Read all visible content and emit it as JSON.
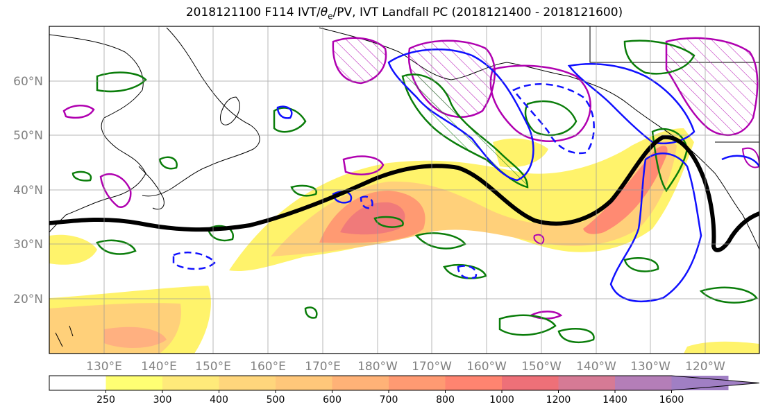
{
  "title": {
    "prefix": "2018121100 F114 IVT/",
    "theta": "θ",
    "theta_sub": "e",
    "suffix": "/PV, IVT Landfall PC (2018121400 - 2018121600)"
  },
  "map": {
    "lat_labels": [
      "60°N",
      "50°N",
      "40°N",
      "30°N",
      "20°N"
    ],
    "lon_labels": [
      "130°E",
      "140°E",
      "150°E",
      "160°E",
      "170°E",
      "180°W",
      "170°W",
      "160°W",
      "150°W",
      "140°W",
      "130°W",
      "120°W"
    ],
    "colors": {
      "ivt_low": "#fff36b",
      "ivt_mid": "#ffd07a",
      "ivt_high": "#ff8a72",
      "ivt_core": "#e8727a",
      "theta_contour": "#0a7d0a",
      "pv_contour": "#1010ff",
      "pv_hatch": "#b000b0",
      "landfall_path": "#000000",
      "coast": "#000000"
    }
  },
  "colorbar": {
    "ticks": [
      "250",
      "300",
      "400",
      "500",
      "600",
      "700",
      "800",
      "1000",
      "1200",
      "1400",
      "1600"
    ],
    "colors": [
      "#ffffff",
      "#ffff73",
      "#ffea7a",
      "#ffd67c",
      "#ffc77a",
      "#ffb277",
      "#ff9a72",
      "#ff8470",
      "#ee7078",
      "#d67a95",
      "#b47eb8",
      "#a07fc4"
    ]
  }
}
